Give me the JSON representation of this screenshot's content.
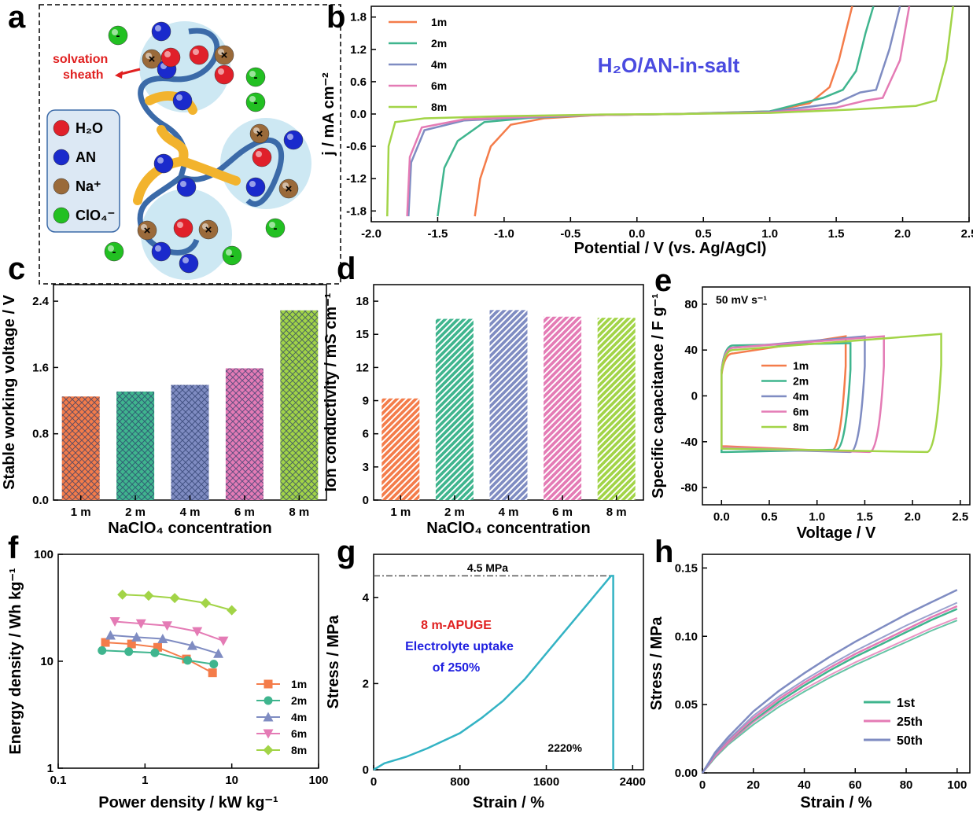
{
  "panel_labels": [
    "a",
    "b",
    "c",
    "d",
    "e",
    "f",
    "g",
    "h"
  ],
  "colors": {
    "c1": "#f47c4a",
    "c2": "#3fb58e",
    "c4": "#7f8cc2",
    "c6": "#e47bb5",
    "c8": "#a2d447",
    "blue_text": "#4a4be0",
    "red_text": "#e02020",
    "stress": "#33b3c4",
    "h1": "#3fb58e",
    "h25": "#e47bb5",
    "h50": "#7f8cc2"
  },
  "schematic": {
    "solvation_label": [
      "solvation",
      "sheath"
    ],
    "legend": [
      {
        "label": "H₂O",
        "color": "#e0202a"
      },
      {
        "label": "AN",
        "color": "#1a2acc"
      },
      {
        "label": "Na⁺",
        "color": "#9a6a3a"
      },
      {
        "label": "ClO₄⁻",
        "color": "#22c022"
      }
    ]
  },
  "chart_data": [
    {
      "panel": "b",
      "type": "line",
      "title": "H₂O/AN-in-salt",
      "xlabel": "Potential / V (vs. Ag/AgCl)",
      "ylabel": "j / mA cm⁻²",
      "xlim": [
        -2.0,
        2.5
      ],
      "ylim": [
        -2.0,
        2.0
      ],
      "xticks": [
        "-2.0",
        "-1.5",
        "-1.0",
        "-0.5",
        "0.0",
        "0.5",
        "1.0",
        "1.5",
        "2.0",
        "2.5"
      ],
      "yticks": [
        "-1.8",
        "-1.2",
        "-0.6",
        "0.0",
        "0.6",
        "1.2",
        "1.8"
      ],
      "legend_position": "top-left",
      "series": [
        {
          "name": "1m",
          "color_key": "c1",
          "x": [
            -1.22,
            -1.18,
            -1.1,
            -0.95,
            -0.7,
            -0.3,
            0.3,
            1.0,
            1.3,
            1.45,
            1.52,
            1.58,
            1.62
          ],
          "y": [
            -1.9,
            -1.2,
            -0.6,
            -0.2,
            -0.08,
            -0.02,
            0.0,
            0.05,
            0.2,
            0.5,
            1.0,
            1.6,
            2.0
          ]
        },
        {
          "name": "2m",
          "color_key": "c2",
          "x": [
            -1.5,
            -1.45,
            -1.35,
            -1.15,
            -0.8,
            -0.3,
            0.3,
            1.0,
            1.4,
            1.55,
            1.65,
            1.72,
            1.78
          ],
          "y": [
            -1.9,
            -1.0,
            -0.5,
            -0.15,
            -0.07,
            -0.02,
            0.0,
            0.05,
            0.3,
            0.45,
            0.8,
            1.5,
            2.0
          ]
        },
        {
          "name": "4m",
          "color_key": "c4",
          "x": [
            -1.72,
            -1.7,
            -1.6,
            -1.3,
            -0.8,
            -0.3,
            0.3,
            1.0,
            1.5,
            1.68,
            1.8,
            1.9,
            1.98
          ],
          "y": [
            -1.9,
            -0.9,
            -0.3,
            -0.12,
            -0.06,
            -0.02,
            0.0,
            0.04,
            0.2,
            0.4,
            0.45,
            1.2,
            2.0
          ]
        },
        {
          "name": "6m",
          "color_key": "c6",
          "x": [
            -1.73,
            -1.71,
            -1.62,
            -1.3,
            -0.8,
            -0.3,
            0.3,
            1.0,
            1.5,
            1.72,
            1.85,
            1.98,
            2.05
          ],
          "y": [
            -1.9,
            -0.8,
            -0.25,
            -0.1,
            -0.05,
            -0.02,
            0.0,
            0.03,
            0.12,
            0.25,
            0.3,
            1.0,
            2.0
          ]
        },
        {
          "name": "8m",
          "color_key": "c8",
          "x": [
            -1.88,
            -1.87,
            -1.82,
            -1.6,
            -1.0,
            -0.3,
            0.3,
            1.0,
            1.6,
            2.1,
            2.25,
            2.33,
            2.38
          ],
          "y": [
            -1.9,
            -0.6,
            -0.15,
            -0.08,
            -0.04,
            -0.01,
            0.0,
            0.02,
            0.08,
            0.15,
            0.25,
            1.0,
            2.0
          ]
        }
      ]
    },
    {
      "panel": "c",
      "type": "bar",
      "xlabel": "NaClO₄ concentration",
      "ylabel": "Stable working voltage  / V",
      "ylim": [
        0,
        2.6
      ],
      "yticks": [
        "0.0",
        "0.8",
        "1.6",
        "2.4"
      ],
      "categories": [
        "1 m",
        "2 m",
        "4 m",
        "6 m",
        "8 m"
      ],
      "values": [
        1.25,
        1.31,
        1.39,
        1.59,
        2.29
      ],
      "bar_color_keys": [
        "c1",
        "c2",
        "c4",
        "c6",
        "c8"
      ]
    },
    {
      "panel": "d",
      "type": "bar",
      "xlabel": "NaClO₄ concentration",
      "ylabel": "Ion conductivity / mS cm⁻¹",
      "ylim": [
        0,
        19.5
      ],
      "yticks": [
        "0",
        "3",
        "6",
        "9",
        "12",
        "15",
        "18"
      ],
      "categories": [
        "1 m",
        "2 m",
        "4 m",
        "6 m",
        "8 m"
      ],
      "values": [
        9.2,
        16.4,
        17.2,
        16.6,
        16.5
      ],
      "bar_color_keys": [
        "c1",
        "c2",
        "c4",
        "c6",
        "c8"
      ]
    },
    {
      "panel": "e",
      "type": "line",
      "annotation": "50 mV s⁻¹",
      "xlabel": "Voltage / V",
      "ylabel": "Specific capacitance  / F g⁻¹",
      "xlim": [
        -0.2,
        2.6
      ],
      "ylim": [
        -95,
        95
      ],
      "xticks": [
        "0.0",
        "0.5",
        "1.0",
        "1.5",
        "2.0",
        "2.5"
      ],
      "yticks": [
        "-80",
        "-40",
        "0",
        "40",
        "80"
      ],
      "legend_position": "center-left",
      "series": [
        {
          "name": "1m",
          "color_key": "c1",
          "vmax": 1.3,
          "top": [
            37,
            52
          ],
          "bot": [
            -44,
            -48
          ]
        },
        {
          "name": "2m",
          "color_key": "c2",
          "vmax": 1.35,
          "top": [
            44,
            46
          ],
          "bot": [
            -49,
            -47
          ]
        },
        {
          "name": "4m",
          "color_key": "c4",
          "vmax": 1.5,
          "top": [
            42,
            52
          ],
          "bot": [
            -46,
            -49
          ]
        },
        {
          "name": "6m",
          "color_key": "c6",
          "vmax": 1.7,
          "top": [
            42,
            52
          ],
          "bot": [
            -45,
            -49
          ]
        },
        {
          "name": "8m",
          "color_key": "c8",
          "vmax": 2.3,
          "top": [
            40,
            54
          ],
          "bot": [
            -46,
            -49
          ]
        }
      ]
    },
    {
      "panel": "f",
      "type": "scatter",
      "xlabel": "Power density / kW kg⁻¹",
      "ylabel": "Energy density / Wh kg⁻¹",
      "xscale": "log",
      "yscale": "log",
      "xlim": [
        0.1,
        100
      ],
      "ylim": [
        1,
        100
      ],
      "xticks": [
        "0.1",
        "1",
        "10",
        "100"
      ],
      "yticks": [
        "1",
        "10",
        "100"
      ],
      "legend_position": "bottom-right",
      "series": [
        {
          "name": "1m",
          "color_key": "c1",
          "marker": "square",
          "x": [
            0.35,
            0.7,
            1.4,
            3.0,
            6.0
          ],
          "y": [
            15,
            14.5,
            13.5,
            10.5,
            7.8
          ]
        },
        {
          "name": "2m",
          "color_key": "c2",
          "marker": "circle",
          "x": [
            0.32,
            0.65,
            1.3,
            3.1,
            6.2
          ],
          "y": [
            12.6,
            12.3,
            12.0,
            10.2,
            9.4
          ]
        },
        {
          "name": "4m",
          "color_key": "c4",
          "marker": "triangle-up",
          "x": [
            0.4,
            0.8,
            1.6,
            3.5,
            7.0
          ],
          "y": [
            17.5,
            16.8,
            16.2,
            14.0,
            11.8
          ]
        },
        {
          "name": "6m",
          "color_key": "c6",
          "marker": "triangle-down",
          "x": [
            0.45,
            0.9,
            1.8,
            4.0,
            8.0
          ],
          "y": [
            23.5,
            22.5,
            21.5,
            19.0,
            15.5
          ]
        },
        {
          "name": "8m",
          "color_key": "c8",
          "marker": "diamond",
          "x": [
            0.55,
            1.1,
            2.2,
            5.0,
            10.0
          ],
          "y": [
            42,
            41,
            39,
            35,
            30
          ]
        }
      ]
    },
    {
      "panel": "g",
      "type": "line",
      "xlabel": "Strain / %",
      "ylabel": "Stress / MPa",
      "xlim": [
        0,
        2500
      ],
      "ylim": [
        0,
        5.0
      ],
      "xticks": [
        "0",
        "800",
        "1600",
        "2400"
      ],
      "yticks": [
        "0",
        "2",
        "4"
      ],
      "annotations": {
        "max_stress": "4.5 MPa",
        "elongation": "2220%",
        "sample": "8 m-APUGE",
        "uptake_line1": "Electrolyte uptake",
        "uptake_line2": "of 250%"
      },
      "series": [
        {
          "name": "",
          "color_key": "stress",
          "x": [
            0,
            100,
            300,
            500,
            800,
            1000,
            1200,
            1400,
            1700,
            2000,
            2200,
            2220,
            2220
          ],
          "y": [
            0,
            0.15,
            0.3,
            0.5,
            0.85,
            1.2,
            1.6,
            2.1,
            3.0,
            3.9,
            4.5,
            4.5,
            0
          ]
        }
      ]
    },
    {
      "panel": "h",
      "type": "line",
      "xlabel": "Strain / %",
      "ylabel": "Stress / MPa",
      "xlim": [
        0,
        105
      ],
      "ylim": [
        0,
        0.16
      ],
      "xticks": [
        "0",
        "20",
        "40",
        "60",
        "80",
        "100"
      ],
      "yticks": [
        "0.00",
        "0.05",
        "0.10",
        "0.15"
      ],
      "legend_position": "bottom-right",
      "series": [
        {
          "name": "1st",
          "color_key": "h1",
          "x": [
            0,
            5,
            10,
            20,
            30,
            40,
            50,
            60,
            70,
            80,
            90,
            100
          ],
          "y": [
            0,
            0.012,
            0.022,
            0.038,
            0.052,
            0.064,
            0.075,
            0.085,
            0.094,
            0.103,
            0.112,
            0.12
          ]
        },
        {
          "name": "25th",
          "color_key": "h25",
          "x": [
            0,
            5,
            10,
            20,
            30,
            40,
            50,
            60,
            70,
            80,
            90,
            100
          ],
          "y": [
            0,
            0.013,
            0.023,
            0.04,
            0.054,
            0.066,
            0.077,
            0.087,
            0.096,
            0.105,
            0.114,
            0.122
          ]
        },
        {
          "name": "50th",
          "color_key": "h50",
          "x": [
            0,
            5,
            10,
            20,
            30,
            40,
            50,
            60,
            70,
            80,
            90,
            100
          ],
          "y": [
            0,
            0.015,
            0.026,
            0.045,
            0.06,
            0.073,
            0.085,
            0.096,
            0.106,
            0.116,
            0.125,
            0.134
          ]
        }
      ]
    }
  ]
}
